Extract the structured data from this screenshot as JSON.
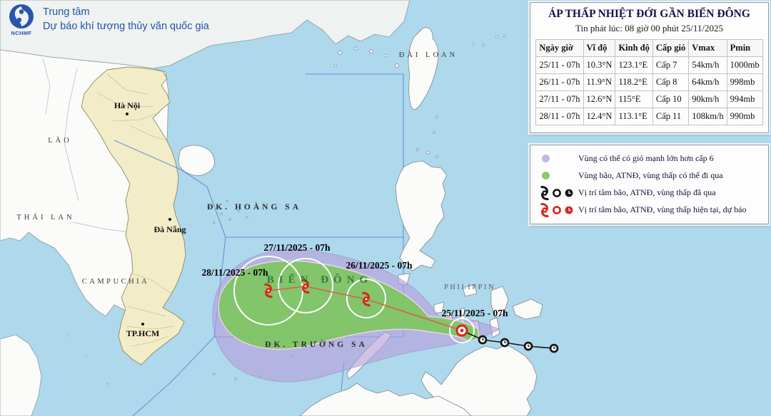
{
  "header": {
    "logo_caption": "NCHMF",
    "org_line1": "Trung tâm",
    "org_line2": "Dự báo khí tượng thủy văn quốc gia"
  },
  "info_panel": {
    "title": "ÁP THẤP NHIỆT ĐỚI GẦN BIỂN ĐÔNG",
    "issued": "Tin phát lúc: 08 giờ 00 phút 25/11/2025",
    "columns": [
      "Ngày giờ",
      "Vĩ độ",
      "Kinh độ",
      "Cấp gió",
      "Vmax",
      "Pmin"
    ],
    "rows": [
      [
        "25/11 - 07h",
        "10.3°N",
        "123.1°E",
        "Cấp 7",
        "54km/h",
        "1000mb"
      ],
      [
        "26/11 - 07h",
        "11.9°N",
        "118.2°E",
        "Cấp 8",
        "64km/h",
        "998mb"
      ],
      [
        "27/11 - 07h",
        "12.6°N",
        "115°E",
        "Cấp 10",
        "90km/h",
        "994mb"
      ],
      [
        "28/11 - 07h",
        "12.4°N",
        "113.1°E",
        "Cấp 11",
        "108km/h",
        "990mb"
      ]
    ]
  },
  "legend": {
    "items": [
      {
        "symbol": "purple-area",
        "label": "Vùng có thể có gió mạnh lớn hơn cấp 6"
      },
      {
        "symbol": "green-area",
        "label": "Vùng bão, ATNĐ, vùng thấp có thể đi qua"
      },
      {
        "symbol": "past-markers",
        "label": "Vị trí tâm bão, ATNĐ, vùng thấp đã qua"
      },
      {
        "symbol": "current-forecast-markers",
        "label": "Vị trí tâm bão, ATNĐ, vùng thấp hiện tại, dự báo"
      }
    ]
  },
  "map": {
    "labels": {
      "bien_dong": "BIỂN ĐÔNG",
      "hoang_sa": "ĐK. HOÀNG SA",
      "truong_sa": "ĐK. TRƯỜNG SA",
      "dai_loan": "ĐÀI LOAN",
      "lao": "LÀO",
      "thai_lan": "THÁI LAN",
      "campuchia": "CAMPUCHIA",
      "philippin": "PHILIPPIN",
      "ha_noi": "Hà Nội",
      "da_nang": "Đà Nẵng",
      "tphcm": "TP.HCM"
    },
    "track_labels": [
      "25/11/2025 - 07h",
      "26/11/2025 - 07h",
      "27/11/2025 - 07h",
      "28/11/2025 - 07h"
    ],
    "colors": {
      "sea": "#aed8ec",
      "vietnam_land": "#f2edc8",
      "wind_area_purple": "#c6b6e6",
      "pass_area_green": "#8ccb6a",
      "track_past": "#151515",
      "track_forecast": "#df2318",
      "boundary_blue": "#5a85d6"
    }
  }
}
